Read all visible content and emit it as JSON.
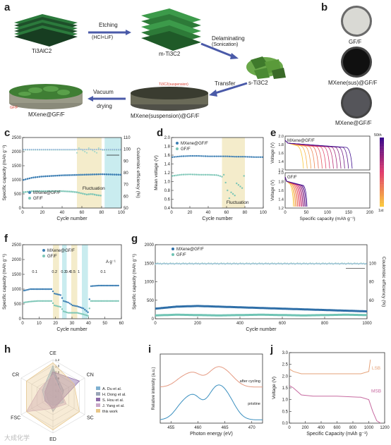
{
  "panels": {
    "a": {
      "letter": "a",
      "ti3alc2": "Ti3AlC2",
      "etching": "Etching",
      "etching_sub": "(HCl+LiF)",
      "m_ti3c2": "m-Ti3C2",
      "delaminating": "Delaminating",
      "delaminating_sub": "(Sonication)",
      "s_ti3c2": "s-Ti3C2",
      "transfer": "Transfer",
      "vacuum": "Vacuum",
      "drying": "drying",
      "suspension_tag": "Ti3C2(suspension)",
      "gff_tag": "GF/F",
      "mxene_gff": "MXene@GF/F",
      "mxene_susp": "MXene(suspension)@GF/F"
    },
    "b": {
      "letter": "b",
      "labels": [
        "GF/F",
        "MXene(sus)@GF/F",
        "MXene@GF/F"
      ],
      "colors": [
        "#d9d9d4",
        "#101010",
        "#55555a"
      ]
    },
    "c": {
      "letter": "c",
      "ylabel": "Specific capacity (mAh g⁻¹)",
      "y2label": "Coulombic efficiency (%)",
      "xlabel": "Cycle number",
      "legend": [
        "MXene@GF/F",
        "GF/F"
      ],
      "annotation": "Fluctuation",
      "yticks": [
        "0",
        "500",
        "1000",
        "1500",
        "2000",
        "2500"
      ],
      "y2ticks": [
        "50",
        "60",
        "70",
        "80",
        "90",
        "100",
        "110"
      ],
      "xticks": [
        "0",
        "20",
        "40",
        "60",
        "80",
        "100"
      ]
    },
    "d": {
      "letter": "d",
      "ylabel": "Mean voltage (V)",
      "xlabel": "Cycle number",
      "legend": [
        "MXene@GF/F",
        "GF/F"
      ],
      "annotation": "Fluctuation",
      "yticks": [
        "0.4",
        "0.6",
        "0.8",
        "1.0",
        "1.2",
        "1.4",
        "1.6",
        "1.8",
        "2.0"
      ],
      "xticks": [
        "0",
        "20",
        "40",
        "60",
        "80",
        "100"
      ]
    },
    "e": {
      "letter": "e",
      "top_label": "MXene@GF/F",
      "bottom_label": "GF/F",
      "ylabel": "Voltage (V)",
      "xlabel": "Specific capacity (mAh g⁻¹)",
      "colorbar_top": "50th",
      "colorbar_bottom": "1st",
      "yticks": [
        "1.2",
        "1.4",
        "1.6",
        "1.8",
        "2.0"
      ],
      "xticks": [
        "0",
        "50",
        "100",
        "150",
        "200"
      ]
    },
    "f": {
      "letter": "f",
      "ylabel": "Specific capacity (mAh g⁻¹)",
      "xlabel": "Cycle number",
      "legend": [
        "MXene@GF/F",
        "GF/F"
      ],
      "rates": [
        "0.1",
        "0.2",
        "0.3",
        "0.4",
        "0.5",
        "1",
        "0.1"
      ],
      "rate_unit": "A g⁻¹",
      "yticks": [
        "0",
        "500",
        "1000",
        "1500",
        "2000",
        "2500"
      ],
      "xticks": [
        "0",
        "10",
        "20",
        "30",
        "40",
        "50",
        "60"
      ]
    },
    "g": {
      "letter": "g",
      "ylabel": "Specific capacity (mAh g⁻¹)",
      "y2label": "Coulombic efficiency (%)",
      "xlabel": "Cycle number",
      "legend": [
        "MXene@GF/F",
        "GF/F"
      ],
      "yticks": [
        "0",
        "500",
        "1000",
        "1500",
        "2000"
      ],
      "y2ticks": [
        "60",
        "80",
        "100"
      ],
      "xticks": [
        "0",
        "200",
        "400",
        "600",
        "800",
        "1000"
      ]
    },
    "h": {
      "letter": "h",
      "axes": [
        "CE",
        "CN",
        "SC",
        "ED",
        "FSC",
        "CR"
      ],
      "rings": [
        "0",
        "0.2",
        "0.4",
        "0.6",
        "0.8",
        "1.0",
        "1.2"
      ],
      "legend": [
        "A. Du et al.",
        "H. Dong et al.",
        "S. Hou et al.",
        "J. Yang et al.",
        "this work"
      ],
      "colors": [
        "#7fb0d0",
        "#9aa6b8",
        "#8c6aa8",
        "#c9a7c9",
        "#e8c78a"
      ]
    },
    "i": {
      "letter": "i",
      "ylabel": "Relative intensity (a.u.)",
      "xlabel": "Photon energy (eV)",
      "after_cycling": "after cycling",
      "pristine": "pristine",
      "xticks": [
        "455",
        "460",
        "465",
        "470"
      ]
    },
    "j": {
      "letter": "j",
      "ylabel": "Voltage (V)",
      "xlabel": "Specific Capacity (mAh g⁻¹)",
      "lsb": "LSB",
      "msb": "MSB",
      "yticks": [
        "0.0",
        "0.5",
        "1.0",
        "1.5",
        "2.0",
        "2.5",
        "3.0"
      ],
      "xticks": [
        "0",
        "200",
        "400",
        "600",
        "800",
        "1000",
        "1200"
      ]
    }
  },
  "watermark": "大成化学",
  "chart_data": [
    {
      "panel": "c",
      "type": "scatter",
      "x_label": "Cycle number",
      "y_label": "Specific capacity (mAh g⁻¹)",
      "xlim": [
        0,
        100
      ],
      "ylim": [
        0,
        2500
      ],
      "y2lim": [
        50,
        110
      ],
      "series": [
        {
          "name": "MXene@GF/F",
          "axis": "left",
          "x": [
            1,
            10,
            20,
            30,
            40,
            50,
            60,
            70,
            80,
            90,
            100
          ],
          "values": [
            1000,
            1080,
            1120,
            1140,
            1160,
            1170,
            1180,
            1190,
            1200,
            1190,
            1180
          ]
        },
        {
          "name": "GF/F",
          "axis": "left",
          "x": [
            1,
            10,
            20,
            30,
            40,
            50,
            55,
            60,
            65,
            70,
            75,
            80
          ],
          "values": [
            560,
            600,
            600,
            600,
            600,
            580,
            560,
            520,
            480,
            500,
            460,
            440
          ]
        }
      ],
      "highlights": [
        [
          55,
          80
        ],
        [
          83,
          100
        ]
      ]
    },
    {
      "panel": "d",
      "type": "scatter",
      "x_label": "Cycle number",
      "y_label": "Mean voltage (V)",
      "xlim": [
        0,
        100
      ],
      "ylim": [
        0.3,
        2.1
      ],
      "series": [
        {
          "name": "MXene@GF/F",
          "x": [
            1,
            10,
            20,
            30,
            40,
            50,
            60,
            70,
            80,
            90,
            100
          ],
          "values": [
            1.6,
            1.62,
            1.63,
            1.63,
            1.62,
            1.62,
            1.62,
            1.61,
            1.61,
            1.6,
            1.6
          ]
        },
        {
          "name": "GF/F",
          "x": [
            1,
            10,
            20,
            30,
            40,
            50,
            55,
            60,
            65,
            70,
            75,
            80
          ],
          "values": [
            1.12,
            1.15,
            1.16,
            1.15,
            1.15,
            1.14,
            1.1,
            0.85,
            0.6,
            0.75,
            0.9,
            1.05
          ]
        }
      ],
      "highlights": [
        [
          55,
          80
        ]
      ]
    },
    {
      "panel": "f",
      "type": "scatter",
      "x_label": "Cycle number",
      "y_label": "Specific capacity (mAh g⁻¹)",
      "xlim": [
        0,
        65
      ],
      "ylim": [
        0,
        2500
      ],
      "series": [
        {
          "name": "MXene@GF/F",
          "x": [
            1,
            5,
            10,
            15,
            19,
            21,
            25,
            27,
            30,
            33,
            36,
            40,
            43,
            45,
            50,
            55,
            60,
            63
          ],
          "values": [
            950,
            1000,
            1000,
            1000,
            1000,
            850,
            800,
            600,
            550,
            450,
            420,
            350,
            220,
            1100,
            1120,
            1120,
            1120,
            1120
          ]
        },
        {
          "name": "GF/F",
          "x": [
            1,
            5,
            10,
            15,
            19,
            21,
            25,
            27,
            30,
            33,
            36,
            40,
            43,
            45,
            50,
            55,
            60,
            63
          ],
          "values": [
            550,
            580,
            600,
            600,
            600,
            450,
            400,
            250,
            200,
            200,
            200,
            150,
            100,
            600,
            600,
            600,
            600,
            600
          ]
        }
      ]
    },
    {
      "panel": "g",
      "type": "line",
      "x_label": "Cycle number",
      "y_label": "Specific capacity (mAh g⁻¹)",
      "xlim": [
        0,
        1000
      ],
      "ylim": [
        0,
        2200
      ],
      "series": [
        {
          "name": "MXene@GF/F",
          "x": [
            0,
            100,
            200,
            300,
            400,
            500,
            600,
            700,
            800,
            900,
            1000
          ],
          "values": [
            300,
            360,
            380,
            360,
            340,
            320,
            300,
            280,
            260,
            240,
            220
          ]
        },
        {
          "name": "GF/F",
          "x": [
            0,
            100,
            200,
            300,
            400,
            500,
            600,
            700,
            800,
            900,
            1000
          ],
          "values": [
            100,
            120,
            110,
            100,
            110,
            120,
            110,
            100,
            110,
            120,
            110
          ]
        }
      ]
    },
    {
      "panel": "h",
      "type": "radar",
      "axes": [
        "CE",
        "CN",
        "SC",
        "ED",
        "FSC",
        "CR"
      ],
      "series": [
        {
          "name": "A. Du et al.",
          "values": [
            1.0,
            0.3,
            0.4,
            0.3,
            0.3,
            0.4
          ]
        },
        {
          "name": "H. Dong et al.",
          "values": [
            0.9,
            0.4,
            0.3,
            0.5,
            0.2,
            0.3
          ]
        },
        {
          "name": "S. Hou et al.",
          "values": [
            0.8,
            1.0,
            0.3,
            0.4,
            0.3,
            0.3
          ]
        },
        {
          "name": "J. Yang et al.",
          "values": [
            0.7,
            0.3,
            0.5,
            0.4,
            1.0,
            0.5
          ]
        },
        {
          "name": "this work",
          "values": [
            1.1,
            0.8,
            1.0,
            1.1,
            1.0,
            1.0
          ]
        }
      ]
    },
    {
      "panel": "j",
      "type": "line",
      "x_label": "Specific Capacity (mAh g⁻¹)",
      "y_label": "Voltage (V)",
      "xlim": [
        0,
        1200
      ],
      "ylim": [
        0,
        3.0
      ],
      "series": [
        {
          "name": "LSB",
          "x": [
            0,
            50,
            150,
            300,
            600,
            900,
            1000,
            1020
          ],
          "values": [
            2.3,
            2.2,
            2.1,
            2.1,
            2.1,
            2.1,
            2.2,
            2.7
          ]
        },
        {
          "name": "MSB",
          "x": [
            0,
            50,
            150,
            300,
            600,
            900,
            1000,
            1050,
            1100,
            1150
          ],
          "values": [
            1.6,
            1.5,
            1.2,
            1.15,
            1.15,
            1.1,
            1.0,
            0.5,
            0.1,
            0.0
          ]
        }
      ]
    }
  ]
}
